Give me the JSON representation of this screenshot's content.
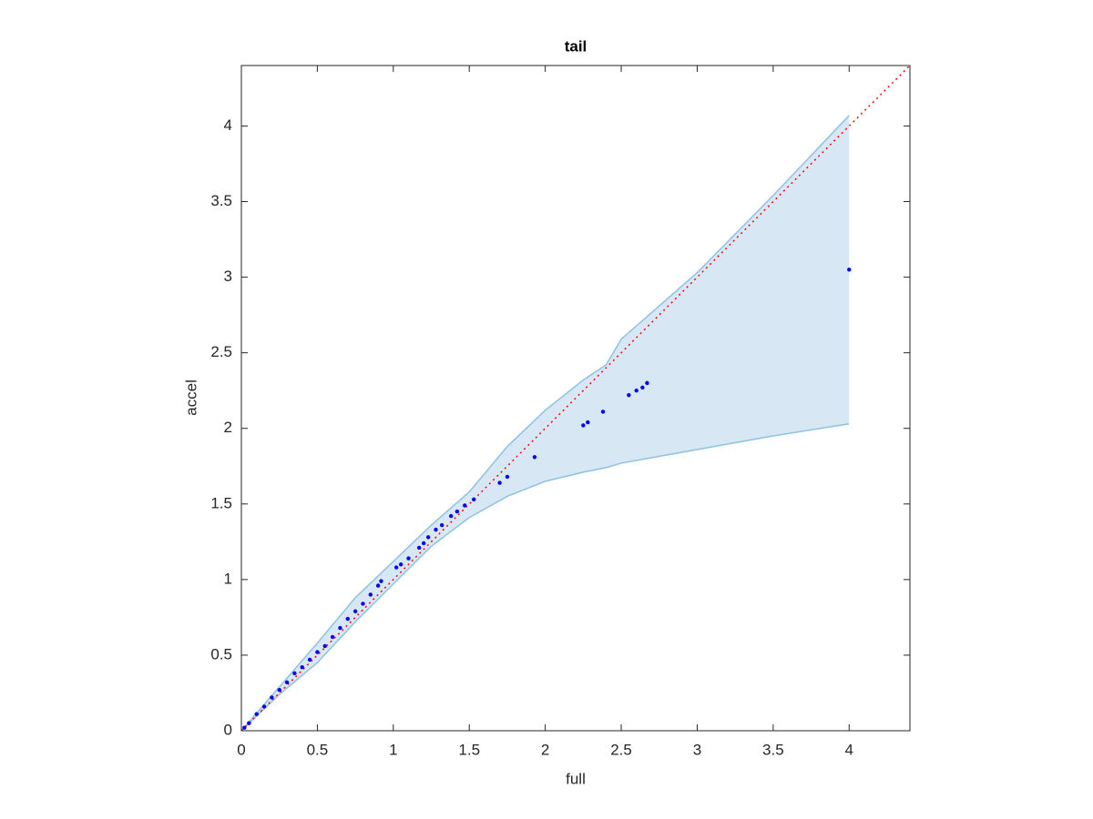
{
  "chart_data": {
    "type": "scatter",
    "title": "tail",
    "x_label": "full",
    "y_label": "accel",
    "xlim": [
      0,
      4.4
    ],
    "ylim": [
      0,
      4.4
    ],
    "xticks": [
      0,
      0.5,
      1,
      1.5,
      2,
      2.5,
      3,
      3.5,
      4
    ],
    "yticks": [
      0,
      0.5,
      1,
      1.5,
      2,
      2.5,
      3,
      3.5,
      4
    ],
    "band": {
      "fill_color": "#d7e7f3",
      "edge_color": "#8ec2e3",
      "x": [
        0,
        0.25,
        0.5,
        0.75,
        1,
        1.25,
        1.5,
        1.75,
        2,
        2.25,
        2.4,
        2.5,
        3,
        3.5,
        4
      ],
      "upper": [
        0,
        0.29,
        0.58,
        0.88,
        1.12,
        1.36,
        1.58,
        1.88,
        2.12,
        2.32,
        2.42,
        2.59,
        3.03,
        3.54,
        4.07
      ],
      "lower": [
        0,
        0.24,
        0.45,
        0.72,
        0.97,
        1.22,
        1.41,
        1.55,
        1.65,
        1.71,
        1.74,
        1.77,
        1.86,
        1.95,
        2.03
      ]
    },
    "points": {
      "color": "#0000ff",
      "x": [
        0.02,
        0.05,
        0.1,
        0.15,
        0.2,
        0.25,
        0.3,
        0.35,
        0.4,
        0.45,
        0.5,
        0.55,
        0.6,
        0.65,
        0.7,
        0.75,
        0.8,
        0.85,
        0.9,
        0.92,
        1.02,
        1.05,
        1.1,
        1.17,
        1.2,
        1.23,
        1.28,
        1.32,
        1.38,
        1.42,
        1.47,
        1.53,
        1.7,
        1.75,
        1.93,
        2.25,
        2.28,
        2.38,
        2.55,
        2.6,
        2.64,
        2.67,
        4.0
      ],
      "y": [
        0.02,
        0.05,
        0.11,
        0.16,
        0.22,
        0.27,
        0.32,
        0.38,
        0.42,
        0.47,
        0.52,
        0.56,
        0.62,
        0.68,
        0.74,
        0.79,
        0.84,
        0.9,
        0.96,
        0.99,
        1.08,
        1.1,
        1.14,
        1.21,
        1.24,
        1.28,
        1.33,
        1.36,
        1.42,
        1.45,
        1.49,
        1.53,
        1.64,
        1.68,
        1.81,
        2.02,
        2.04,
        2.11,
        2.22,
        2.25,
        2.27,
        2.3,
        3.05
      ]
    },
    "reference": {
      "color": "#ff0000",
      "x": [
        0,
        4.4
      ],
      "y": [
        0,
        4.4
      ]
    }
  }
}
